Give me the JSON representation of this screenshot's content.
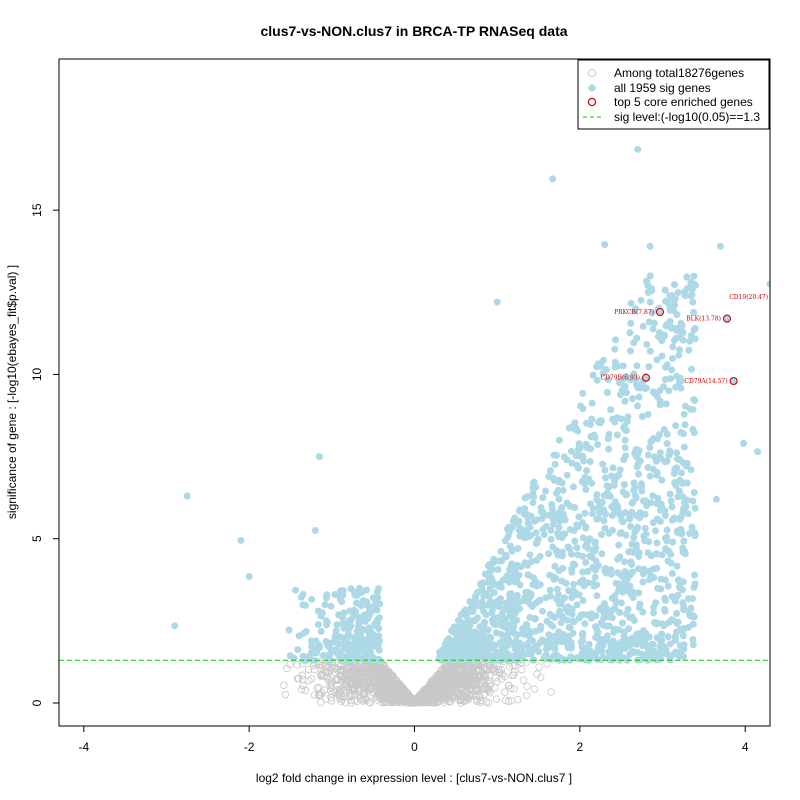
{
  "chart_data": {
    "type": "scatter",
    "title": "clus7-vs-NON.clus7 in BRCA-TP RNASeq data",
    "xlabel": "log2 fold change in expression level : [clus7-vs-NON.clus7 ]",
    "ylabel": "significance of gene : [-log10(ebayes_fit$p.val) ]",
    "xlim": [
      -4.3,
      4.3
    ],
    "ylim": [
      -0.7,
      19.6
    ],
    "xticks": [
      -4,
      -2,
      0,
      2,
      4
    ],
    "yticks": [
      0,
      5,
      10,
      15
    ],
    "sig_level": 1.3,
    "colors": {
      "nonsig": "#c8c8c8",
      "sig": "#add8e6",
      "top": "#cc0000",
      "threshold": "#00cc00"
    },
    "legend": {
      "position": "top-right",
      "items": [
        {
          "label": "Among total18276genes",
          "marker": "open-circle-gray"
        },
        {
          "label": "all 1959 sig genes",
          "marker": "filled-circle-lightblue"
        },
        {
          "label": "top 5 core enriched genes",
          "marker": "open-circle-red"
        },
        {
          "label": "sig level:(-log10(0.05)==1.3",
          "marker": "dashed-line-green"
        }
      ]
    },
    "top_genes": [
      {
        "label": "CD19(20.47)",
        "x": 4.35,
        "y": 12.35
      },
      {
        "label": "PRKCB(7.87)",
        "x": 2.97,
        "y": 11.9
      },
      {
        "label": "BLK(13.78)",
        "x": 3.78,
        "y": 11.7
      },
      {
        "label": "CD79B(6.93)",
        "x": 2.8,
        "y": 9.9
      },
      {
        "label": "CD79A(14.57)",
        "x": 3.86,
        "y": 9.8
      }
    ],
    "notable_sig_points": [
      {
        "x": 2.7,
        "y": 16.85
      },
      {
        "x": 1.67,
        "y": 15.95
      },
      {
        "x": 3.7,
        "y": 13.9
      },
      {
        "x": 2.3,
        "y": 13.95
      },
      {
        "x": 2.85,
        "y": 13.9
      },
      {
        "x": 4.3,
        "y": 12.75
      },
      {
        "x": -2.75,
        "y": 6.3
      },
      {
        "x": -1.15,
        "y": 7.5
      },
      {
        "x": -1.2,
        "y": 5.25
      },
      {
        "x": -2.1,
        "y": 4.95
      },
      {
        "x": -2.9,
        "y": 2.35
      },
      {
        "x": -2.0,
        "y": 3.85
      },
      {
        "x": 4.15,
        "y": 7.65
      },
      {
        "x": 3.98,
        "y": 7.9
      },
      {
        "x": 3.65,
        "y": 6.2
      },
      {
        "x": 2.6,
        "y": 5.6
      },
      {
        "x": 1.0,
        "y": 12.2
      }
    ]
  }
}
